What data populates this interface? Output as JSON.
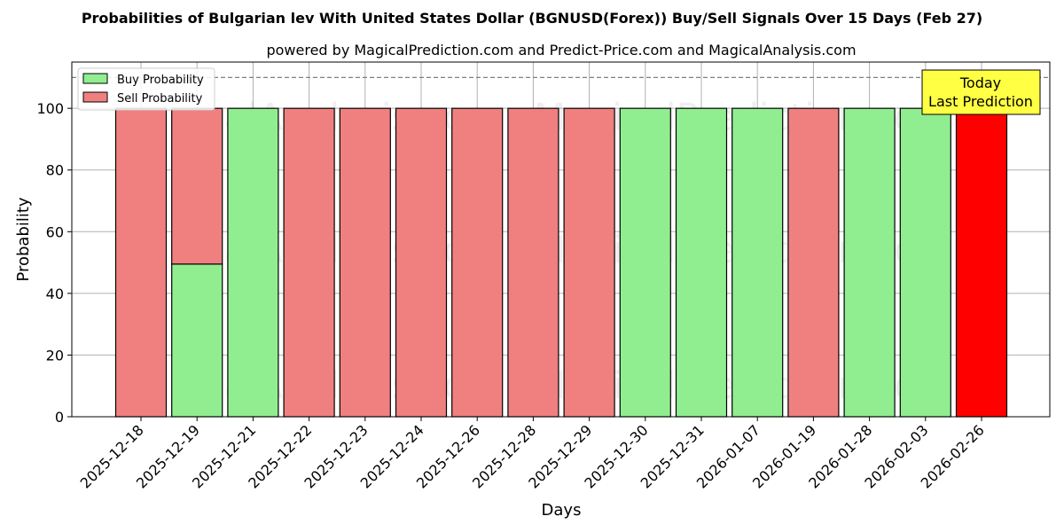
{
  "chart_data": {
    "type": "bar",
    "title": "Probabilities of Bulgarian lev With United States Dollar (BGNUSD(Forex)) Buy/Sell Signals Over 15 Days (Feb 27)",
    "subtitle": "powered by MagicalPrediction.com and Predict-Price.com and MagicalAnalysis.com",
    "xlabel": "Days",
    "ylabel": "Probability",
    "ylim": [
      0,
      115
    ],
    "yticks": [
      0,
      20,
      40,
      60,
      80,
      100
    ],
    "reference_line": 110,
    "grid": true,
    "legend_position": "top-left",
    "categories": [
      "2025-12-18",
      "2025-12-19",
      "2025-12-21",
      "2025-12-22",
      "2025-12-23",
      "2025-12-24",
      "2025-12-26",
      "2025-12-28",
      "2025-12-29",
      "2025-12-30",
      "2025-12-31",
      "2026-01-07",
      "2026-01-19",
      "2026-01-28",
      "2026-02-03",
      "2026-02-26"
    ],
    "series": [
      {
        "name": "Buy Probability",
        "color": "#90ee90",
        "values": [
          0,
          49.5,
          100,
          0,
          0,
          0,
          0,
          0,
          0,
          100,
          100,
          100,
          0,
          100,
          100,
          0
        ]
      },
      {
        "name": "Sell Probability",
        "color": "#f08080",
        "values": [
          100,
          50.5,
          0,
          100,
          100,
          100,
          100,
          100,
          100,
          0,
          0,
          0,
          100,
          0,
          0,
          100
        ]
      }
    ],
    "highlight": {
      "index": 15,
      "color": "#ff0000"
    },
    "annotation": {
      "lines": [
        "Today",
        "Last Prediction"
      ],
      "color": "#ffff44"
    },
    "watermarks": [
      "MagicalAnalysis.com",
      "MagicalPrediction.com"
    ]
  }
}
